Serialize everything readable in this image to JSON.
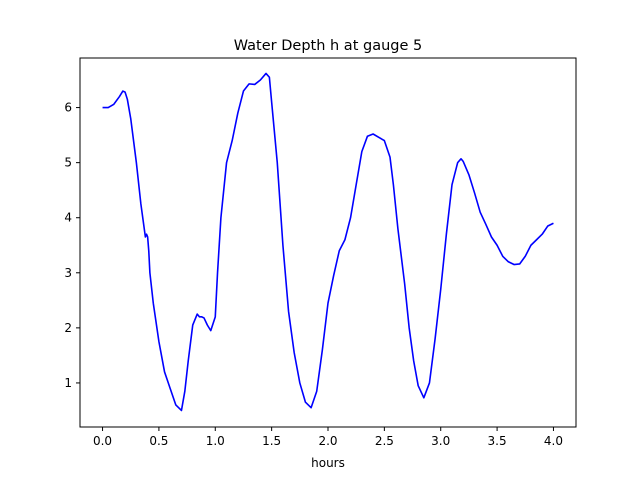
{
  "chart_data": {
    "type": "line",
    "title": "Water Depth h at gauge 5",
    "xlabel": "hours",
    "ylabel": "",
    "xlim": [
      -0.2,
      4.2
    ],
    "ylim": [
      0.2,
      6.9
    ],
    "x_ticks": [
      0.0,
      0.5,
      1.0,
      1.5,
      2.0,
      2.5,
      3.0,
      3.5,
      4.0
    ],
    "x_tick_labels": [
      "0.0",
      "0.5",
      "1.0",
      "1.5",
      "2.0",
      "2.5",
      "3.0",
      "3.5",
      "4.0"
    ],
    "y_ticks": [
      1,
      2,
      3,
      4,
      5,
      6
    ],
    "y_tick_labels": [
      "1",
      "2",
      "3",
      "4",
      "5",
      "6"
    ],
    "grid": false,
    "legend": "none",
    "series": [
      {
        "color": "#0000ff",
        "x": [
          0.0,
          0.05,
          0.1,
          0.15,
          0.18,
          0.2,
          0.22,
          0.25,
          0.3,
          0.34,
          0.38,
          0.39,
          0.4,
          0.41,
          0.42,
          0.45,
          0.5,
          0.55,
          0.6,
          0.65,
          0.7,
          0.73,
          0.76,
          0.8,
          0.84,
          0.86,
          0.88,
          0.9,
          0.93,
          0.96,
          1.0,
          1.02,
          1.05,
          1.1,
          1.15,
          1.2,
          1.25,
          1.3,
          1.35,
          1.4,
          1.45,
          1.48,
          1.5,
          1.55,
          1.6,
          1.65,
          1.7,
          1.75,
          1.8,
          1.85,
          1.9,
          1.95,
          2.0,
          2.05,
          2.1,
          2.15,
          2.2,
          2.25,
          2.3,
          2.35,
          2.4,
          2.45,
          2.5,
          2.55,
          2.58,
          2.62,
          2.68,
          2.72,
          2.76,
          2.8,
          2.85,
          2.9,
          2.95,
          3.0,
          3.05,
          3.1,
          3.15,
          3.18,
          3.2,
          3.25,
          3.3,
          3.35,
          3.4,
          3.45,
          3.5,
          3.55,
          3.6,
          3.65,
          3.7,
          3.75,
          3.8,
          3.85,
          3.9,
          3.95,
          4.0
        ],
        "y": [
          6.0,
          6.0,
          6.06,
          6.2,
          6.3,
          6.28,
          6.15,
          5.8,
          5.0,
          4.25,
          3.65,
          3.7,
          3.65,
          3.4,
          3.0,
          2.45,
          1.75,
          1.2,
          0.9,
          0.6,
          0.5,
          0.85,
          1.4,
          2.05,
          2.25,
          2.2,
          2.2,
          2.18,
          2.05,
          1.95,
          2.2,
          3.0,
          4.0,
          5.0,
          5.4,
          5.9,
          6.3,
          6.43,
          6.42,
          6.5,
          6.62,
          6.55,
          6.1,
          5.0,
          3.5,
          2.3,
          1.55,
          1.0,
          0.65,
          0.55,
          0.85,
          1.6,
          2.45,
          2.95,
          3.4,
          3.6,
          4.0,
          4.6,
          5.2,
          5.48,
          5.52,
          5.46,
          5.4,
          5.1,
          4.6,
          3.8,
          2.8,
          2.0,
          1.4,
          0.95,
          0.73,
          1.0,
          1.8,
          2.7,
          3.7,
          4.6,
          5.0,
          5.07,
          5.02,
          4.78,
          4.45,
          4.1,
          3.88,
          3.65,
          3.5,
          3.3,
          3.2,
          3.15,
          3.16,
          3.3,
          3.5,
          3.6,
          3.7,
          3.85,
          3.9
        ]
      }
    ]
  }
}
